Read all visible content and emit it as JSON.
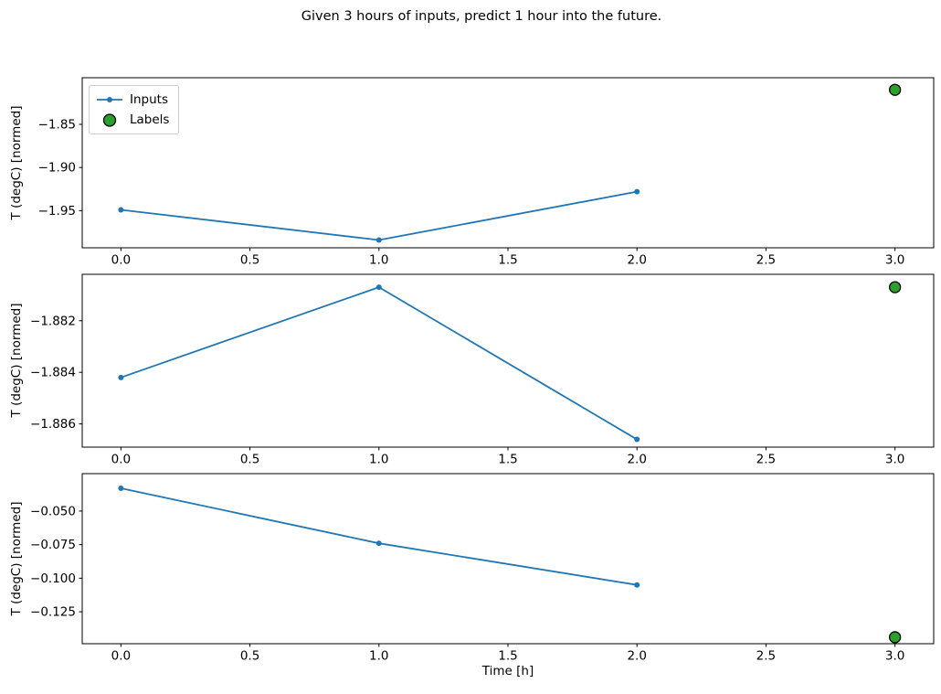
{
  "title": "Given 3 hours of inputs, predict 1 hour into the future.",
  "colors": {
    "inputs": "#1f77b4",
    "labels_fill": "#2ca02c",
    "labels_edge": "#000000",
    "spine": "#000000",
    "legend_border": "#cccccc"
  },
  "chart_data": [
    {
      "type": "line",
      "title": "",
      "xlabel": "",
      "ylabel": "T (degC) [normed]",
      "xlim": [
        -0.15,
        3.15
      ],
      "ylim": [
        -1.993,
        -1.796
      ],
      "grid": false,
      "xticks": {
        "values": [
          0,
          0.5,
          1,
          1.5,
          2,
          2.5,
          3
        ],
        "labels": [
          "0.0",
          "0.5",
          "1.0",
          "1.5",
          "2.0",
          "2.5",
          "3.0"
        ]
      },
      "yticks": {
        "values": [
          -1.85,
          -1.9,
          -1.95
        ],
        "labels": [
          "−1.85",
          "−1.90",
          "−1.95"
        ]
      },
      "series": [
        {
          "name": "Inputs",
          "kind": "line_with_markers",
          "color": "#1f77b4",
          "marker_radius": 3,
          "x": [
            0,
            1,
            2
          ],
          "y": [
            -1.949,
            -1.984,
            -1.928
          ]
        },
        {
          "name": "Labels",
          "kind": "scatter",
          "color": "#2ca02c",
          "edge_color": "#000000",
          "marker_radius": 6,
          "x": [
            3
          ],
          "y": [
            -1.81
          ]
        }
      ],
      "legend": {
        "location": "upper left",
        "entries": [
          "Inputs",
          "Labels"
        ]
      }
    },
    {
      "type": "line",
      "title": "",
      "xlabel": "",
      "ylabel": "T (degC) [normed]",
      "xlim": [
        -0.15,
        3.15
      ],
      "ylim": [
        -1.8869,
        -1.8802
      ],
      "grid": false,
      "xticks": {
        "values": [
          0,
          0.5,
          1,
          1.5,
          2,
          2.5,
          3
        ],
        "labels": [
          "0.0",
          "0.5",
          "1.0",
          "1.5",
          "2.0",
          "2.5",
          "3.0"
        ]
      },
      "yticks": {
        "values": [
          -1.882,
          -1.884,
          -1.886
        ],
        "labels": [
          "−1.882",
          "−1.884",
          "−1.886"
        ]
      },
      "series": [
        {
          "name": "Inputs",
          "kind": "line_with_markers",
          "color": "#1f77b4",
          "marker_radius": 3,
          "x": [
            0,
            1,
            2
          ],
          "y": [
            -1.8842,
            -1.8807,
            -1.8866
          ]
        },
        {
          "name": "Labels",
          "kind": "scatter",
          "color": "#2ca02c",
          "edge_color": "#000000",
          "marker_radius": 6,
          "x": [
            3
          ],
          "y": [
            -1.8807
          ]
        }
      ],
      "legend": null
    },
    {
      "type": "line",
      "title": "",
      "xlabel": "Time [h]",
      "ylabel": "T (degC) [normed]",
      "xlim": [
        -0.15,
        3.15
      ],
      "ylim": [
        -0.1488,
        -0.0221
      ],
      "grid": false,
      "xticks": {
        "values": [
          0,
          0.5,
          1,
          1.5,
          2,
          2.5,
          3
        ],
        "labels": [
          "0.0",
          "0.5",
          "1.0",
          "1.5",
          "2.0",
          "2.5",
          "3.0"
        ]
      },
      "yticks": {
        "values": [
          -0.05,
          -0.075,
          -0.1,
          -0.125
        ],
        "labels": [
          "−0.050",
          "−0.075",
          "−0.100",
          "−0.125"
        ]
      },
      "series": [
        {
          "name": "Inputs",
          "kind": "line_with_markers",
          "color": "#1f77b4",
          "marker_radius": 3,
          "x": [
            0,
            1,
            2
          ],
          "y": [
            -0.033,
            -0.074,
            -0.105
          ]
        },
        {
          "name": "Labels",
          "kind": "scatter",
          "color": "#2ca02c",
          "edge_color": "#000000",
          "marker_radius": 6,
          "x": [
            3
          ],
          "y": [
            -0.144
          ]
        }
      ],
      "legend": null
    }
  ]
}
